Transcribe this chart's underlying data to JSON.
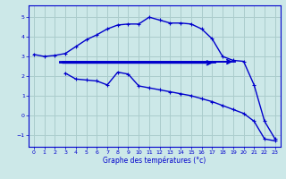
{
  "title": "Graphe des températures (°c)",
  "bg_color": "#cce8e8",
  "grid_color": "#aacccc",
  "line_color": "#0000cc",
  "xlim": [
    -0.5,
    23.5
  ],
  "ylim": [
    -1.6,
    5.6
  ],
  "yticks": [
    -1,
    0,
    1,
    2,
    3,
    4,
    5
  ],
  "xticks": [
    0,
    1,
    2,
    3,
    4,
    5,
    6,
    7,
    8,
    9,
    10,
    11,
    12,
    13,
    14,
    15,
    16,
    17,
    18,
    19,
    20,
    21,
    22,
    23
  ],
  "curve1_x": [
    0,
    1,
    2,
    3,
    4,
    5,
    6,
    7,
    8,
    9,
    10,
    11,
    12,
    13,
    14,
    15,
    16,
    17,
    18,
    19,
    20,
    21,
    22,
    23
  ],
  "curve1_y": [
    3.1,
    3.0,
    3.05,
    3.15,
    3.5,
    3.85,
    4.1,
    4.4,
    4.6,
    4.65,
    4.65,
    5.0,
    4.85,
    4.7,
    4.7,
    4.65,
    4.4,
    3.9,
    3.0,
    2.8,
    2.75,
    1.55,
    -0.3,
    -1.2
  ],
  "curve2_x": [
    3,
    4,
    5,
    6,
    7,
    8,
    9,
    10,
    11,
    12,
    13,
    14,
    15,
    16,
    17,
    18,
    19,
    20,
    21,
    22,
    23
  ],
  "curve2_y": [
    2.15,
    1.85,
    1.8,
    1.75,
    1.55,
    2.2,
    2.1,
    1.5,
    1.4,
    1.3,
    1.2,
    1.1,
    1.0,
    0.85,
    0.7,
    0.5,
    0.3,
    0.1,
    -0.3,
    -1.2,
    -1.3
  ],
  "hline1_x_start": 2.5,
  "hline1_x_end": 19.2,
  "hline1_y": 2.73,
  "hline2_x_start": 2.5,
  "hline2_x_end": 17.3,
  "hline2_y": 2.67
}
